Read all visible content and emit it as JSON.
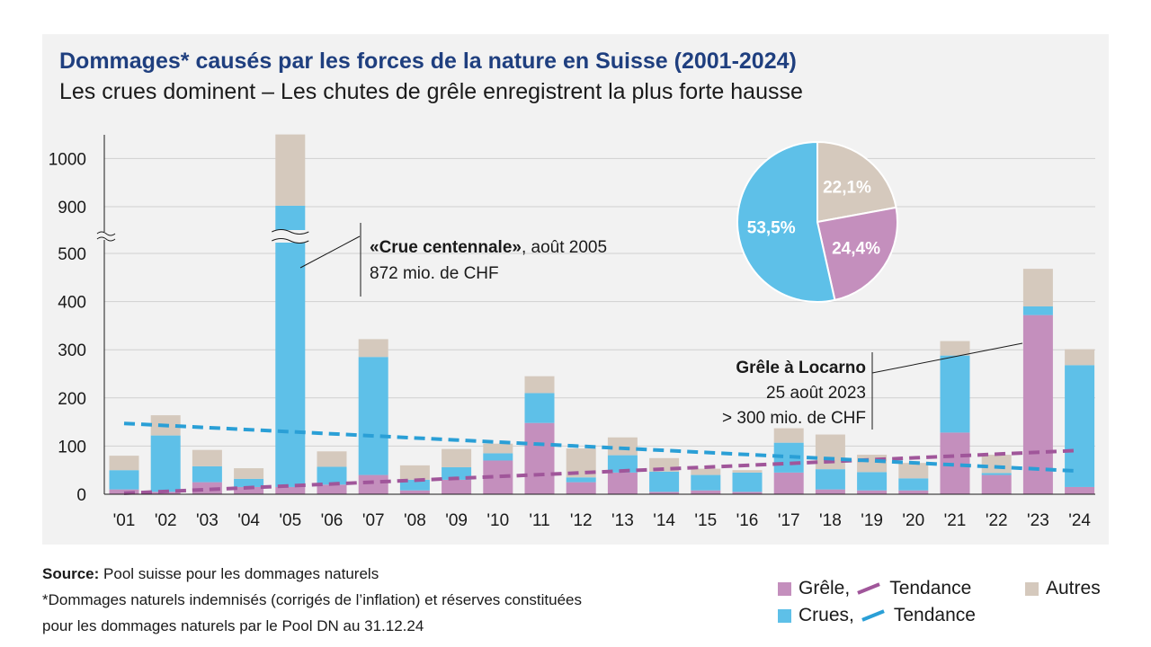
{
  "title": "Dommages* causés par les forces de la nature en Suisse (2001-2024)",
  "subtitle": "Les crues dominent – Les chutes de grêle enregistrent la plus forte hausse",
  "colors": {
    "grele": "#c48fbd",
    "crues": "#5ec0e8",
    "autres": "#d5c9bd",
    "grele_trend": "#a0569a",
    "crues_trend": "#2a9fd6",
    "panel": "#f2f2f2"
  },
  "chart_data": {
    "type": "bar",
    "stacked": true,
    "categories": [
      "'01",
      "'02",
      "'03",
      "'04",
      "'05",
      "'06",
      "'07",
      "'08",
      "'09",
      "'10",
      "'11",
      "'12",
      "'13",
      "'14",
      "'15",
      "'16",
      "'17",
      "'18",
      "'19",
      "'20",
      "'21",
      "'22",
      "'23",
      "'24"
    ],
    "series": [
      {
        "name": "Grêle",
        "values": [
          10,
          5,
          25,
          15,
          15,
          20,
          40,
          8,
          30,
          70,
          148,
          25,
          45,
          5,
          8,
          5,
          45,
          10,
          8,
          8,
          128,
          40,
          372,
          15
        ]
      },
      {
        "name": "Crues",
        "values": [
          40,
          117,
          33,
          17,
          887,
          37,
          245,
          22,
          26,
          15,
          62,
          10,
          36,
          42,
          32,
          40,
          62,
          42,
          38,
          25,
          160,
          4,
          18,
          253
        ]
      },
      {
        "name": "Autres",
        "values": [
          30,
          42,
          34,
          22,
          148,
          32,
          37,
          30,
          38,
          20,
          35,
          60,
          37,
          28,
          13,
          5,
          30,
          72,
          36,
          32,
          30,
          38,
          78,
          33
        ]
      }
    ],
    "trends": [
      {
        "name": "Tendance",
        "of": "Grêle",
        "start": 2,
        "end": 91
      },
      {
        "name": "Tendance",
        "of": "Crues",
        "start": 147,
        "end": 48
      }
    ],
    "yaxis": {
      "lower_ticks": [
        0,
        100,
        200,
        300,
        400,
        500
      ],
      "upper_ticks": [
        900,
        1000
      ],
      "break": [
        500,
        800
      ]
    },
    "grid": true,
    "annotations": [
      {
        "year_index": 4,
        "bold": "«Crue centennale»",
        "rest": ", août 2005",
        "line2": "872 mio. de CHF"
      },
      {
        "year_index": 22,
        "bold": "Grêle à Locarno",
        "line2": "25 août 2023",
        "line3": "> 300 mio. de CHF"
      }
    ],
    "pie": {
      "slices": [
        {
          "name": "Crues",
          "value": 53.5,
          "label": "53,5%"
        },
        {
          "name": "Grêle",
          "value": 24.4,
          "label": "24,4%"
        },
        {
          "name": "Autres",
          "value": 22.1,
          "label": "22,1%"
        }
      ]
    }
  },
  "footer": {
    "source_label": "Source:",
    "source_text": "Pool suisse pour les dommages naturels",
    "note_line1": "*Dommages naturels indemnisés (corrigés de l’inflation) et réserves constituées",
    "note_line2": "pour les dommages naturels par le Pool DN au 31.12.24"
  },
  "legend": {
    "grele": "Grêle,",
    "grele_trend": "Tendance",
    "crues": "Crues,",
    "crues_trend": "Tendance",
    "autres": "Autres"
  }
}
